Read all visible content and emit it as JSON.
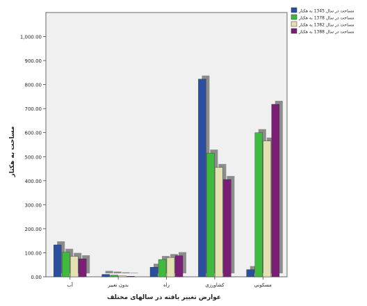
{
  "chart_data": {
    "type": "bar",
    "title": "",
    "xlabel": "عوارض تغییر یافته در سالهای مختلف",
    "ylabel": "مساحت به هکتار",
    "categories": [
      "آب",
      "بدون تغییر",
      "راه",
      "کشاورزی",
      "مسکونی"
    ],
    "ylim": [
      0,
      1100
    ],
    "yticks": [
      "0.00",
      "100.00",
      "200.00",
      "300.00",
      "400.00",
      "500.00",
      "600.00",
      "700.00",
      "800.00",
      "900.00",
      "1,000.00"
    ],
    "legend_position": "top-right",
    "grid": false,
    "series": [
      {
        "name": "مساحت در سال 1345 به هکتار",
        "color": "#2b4f9e",
        "values": [
          133,
          10,
          40,
          823,
          30
        ]
      },
      {
        "name": "مساحت در سال 1378 به هکتار",
        "color": "#3fba3f",
        "values": [
          102,
          7,
          72,
          515,
          600
        ]
      },
      {
        "name": "مساحت در سال 1382 به هکتار",
        "color": "#e3e1b2",
        "values": [
          85,
          4,
          80,
          455,
          565
        ]
      },
      {
        "name": "مساحت در سال 1388 به هکتار",
        "color": "#7a1f76",
        "values": [
          75,
          2,
          88,
          405,
          718
        ]
      }
    ]
  }
}
